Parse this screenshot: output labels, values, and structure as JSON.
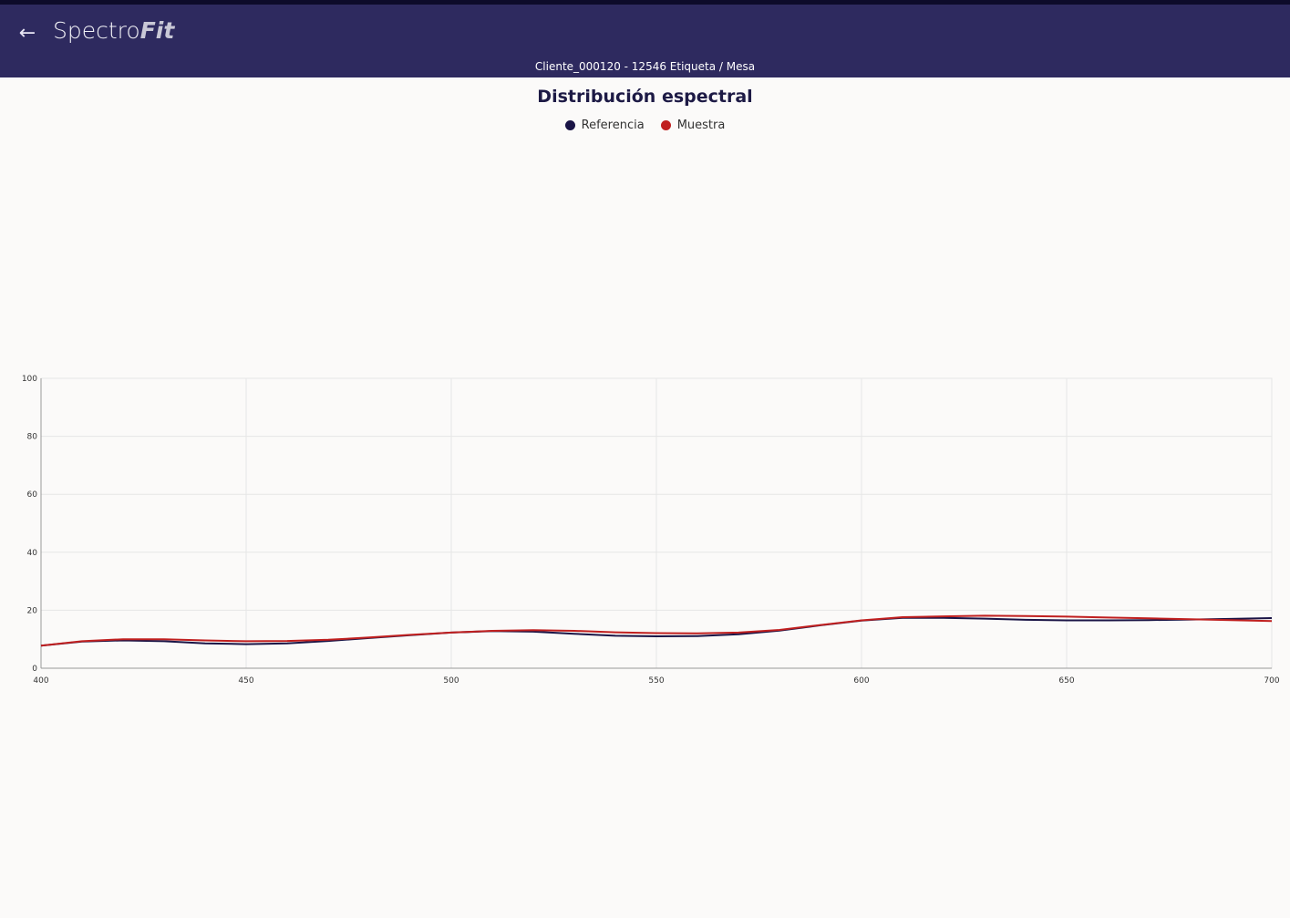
{
  "header": {
    "back_icon": "arrow-left-icon",
    "logo_part1": "Spectro",
    "logo_part2": "Fit",
    "subtitle": "Cliente_000120 - 12546 Etiqueta / Mesa",
    "background": "#2e2a5f"
  },
  "chart_data": {
    "type": "line",
    "title": "Distribución espectral",
    "xlabel": "",
    "ylabel": "",
    "xlim": [
      400,
      700
    ],
    "ylim": [
      0,
      100
    ],
    "x_ticks": [
      400,
      450,
      500,
      550,
      600,
      650,
      700
    ],
    "y_ticks": [
      0,
      20,
      40,
      60,
      80,
      100
    ],
    "grid": true,
    "legend_position": "top-center",
    "x": [
      400,
      410,
      420,
      430,
      440,
      450,
      460,
      470,
      480,
      490,
      500,
      510,
      520,
      530,
      540,
      550,
      560,
      570,
      580,
      590,
      600,
      610,
      620,
      630,
      640,
      650,
      660,
      670,
      680,
      690,
      700
    ],
    "series": [
      {
        "name": "Referencia",
        "color": "#1a1446",
        "values": [
          7.8,
          9.2,
          9.6,
          9.3,
          8.6,
          8.3,
          8.6,
          9.4,
          10.4,
          11.4,
          12.3,
          12.8,
          12.6,
          11.9,
          11.2,
          11.0,
          11.1,
          11.7,
          13.0,
          14.8,
          16.4,
          17.4,
          17.4,
          17.1,
          16.7,
          16.5,
          16.5,
          16.6,
          16.8,
          17.0,
          17.3
        ]
      },
      {
        "name": "Muestra",
        "color": "#c01f1f",
        "values": [
          7.8,
          9.3,
          10.0,
          10.0,
          9.6,
          9.3,
          9.4,
          9.8,
          10.6,
          11.5,
          12.3,
          12.9,
          13.1,
          12.9,
          12.4,
          12.1,
          12.0,
          12.3,
          13.2,
          14.9,
          16.5,
          17.6,
          17.9,
          18.1,
          18.0,
          17.8,
          17.5,
          17.2,
          16.9,
          16.6,
          16.3
        ]
      }
    ]
  }
}
